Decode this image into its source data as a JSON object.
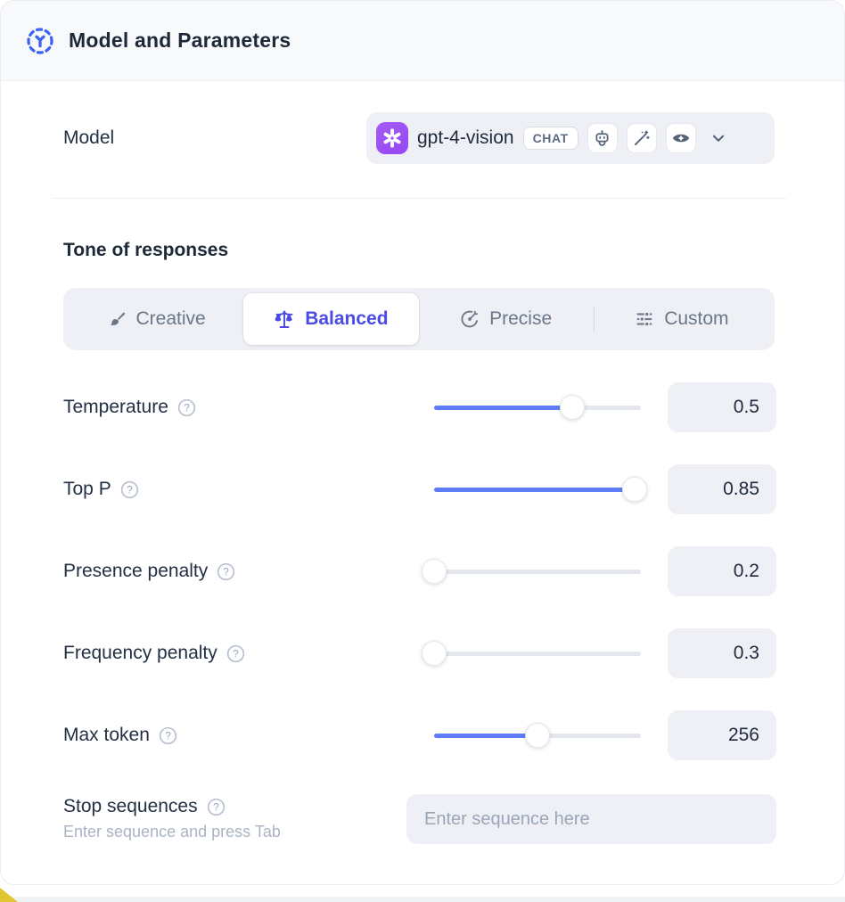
{
  "header": {
    "title": "Model and Parameters"
  },
  "model_row": {
    "label": "Model",
    "model_name": "gpt-4-vision",
    "badge": "CHAT",
    "capability_icons": [
      "robot-icon",
      "magic-wand-icon",
      "eye-icon"
    ]
  },
  "tone": {
    "heading": "Tone of responses",
    "options": [
      {
        "label": "Creative",
        "icon": "paintbrush-icon",
        "selected": false
      },
      {
        "label": "Balanced",
        "icon": "scales-icon",
        "selected": true
      },
      {
        "label": "Precise",
        "icon": "target-icon",
        "selected": false
      },
      {
        "label": "Custom",
        "icon": "sliders-icon",
        "selected": false
      }
    ]
  },
  "parameters": [
    {
      "label": "Temperature",
      "value": "0.5",
      "fill_pct": 67
    },
    {
      "label": "Top P",
      "value": "0.85",
      "fill_pct": 97
    },
    {
      "label": "Presence penalty",
      "value": "0.2",
      "fill_pct": 0
    },
    {
      "label": "Frequency penalty",
      "value": "0.3",
      "fill_pct": 0
    },
    {
      "label": "Max token",
      "value": "256",
      "fill_pct": 50
    }
  ],
  "stop_sequences": {
    "label": "Stop sequences",
    "helper": "Enter sequence and press Tab",
    "placeholder": "Enter sequence here"
  },
  "colors": {
    "accent_blue": "#5E7CF7",
    "selected_indigo": "#4A4AE4",
    "logo_purple": "#A55BF6",
    "header_icon_blue": "#3B63F3"
  }
}
